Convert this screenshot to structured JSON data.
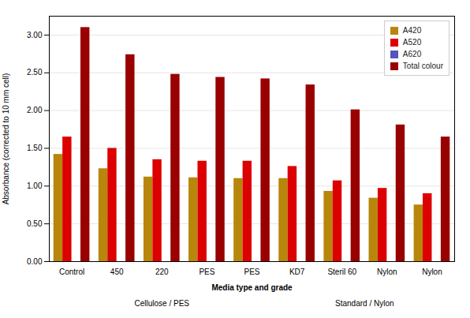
{
  "chart_data": {
    "type": "bar",
    "categories": [
      "Control",
      "450",
      "220",
      "PES",
      "PES",
      "KD7",
      "Steril 60",
      "Nylon",
      "Nylon"
    ],
    "series": [
      {
        "name": "A420",
        "color": "#B8860B",
        "values": [
          1.42,
          1.23,
          1.12,
          1.11,
          1.1,
          1.1,
          0.93,
          0.84,
          0.75
        ]
      },
      {
        "name": "A520",
        "color": "#DD0000",
        "values": [
          1.65,
          1.5,
          1.35,
          1.33,
          1.33,
          1.26,
          1.07,
          0.97,
          0.9
        ]
      },
      {
        "name": "A620",
        "color": "#5555BB",
        "values": [
          0.0,
          0.0,
          0.0,
          0.0,
          0.0,
          0.0,
          0.0,
          0.0,
          0.0
        ]
      },
      {
        "name": "Total colour",
        "color": "#990000",
        "values": [
          3.1,
          2.74,
          2.48,
          2.44,
          2.42,
          2.34,
          2.01,
          1.81,
          1.65
        ]
      }
    ],
    "xlabel": "Media type and grade",
    "ylabel": "Absorbance (corrected to 10 mm cell)",
    "ylim": [
      0.0,
      3.25
    ],
    "yticks": [
      {
        "value": 0.0,
        "label": "0.00"
      },
      {
        "value": 0.5,
        "label": "0.50"
      },
      {
        "value": 1.0,
        "label": "1.00"
      },
      {
        "value": 1.5,
        "label": "1.50"
      },
      {
        "value": 2.0,
        "label": "2.00"
      },
      {
        "value": 2.5,
        "label": "2.50"
      },
      {
        "value": 3.0,
        "label": "3.00"
      }
    ],
    "groups": [
      {
        "label": "Cellulose / PES",
        "count": 5
      },
      {
        "label": "Standard / Nylon",
        "count": 4
      }
    ],
    "grid": true,
    "legend": "upper right"
  }
}
